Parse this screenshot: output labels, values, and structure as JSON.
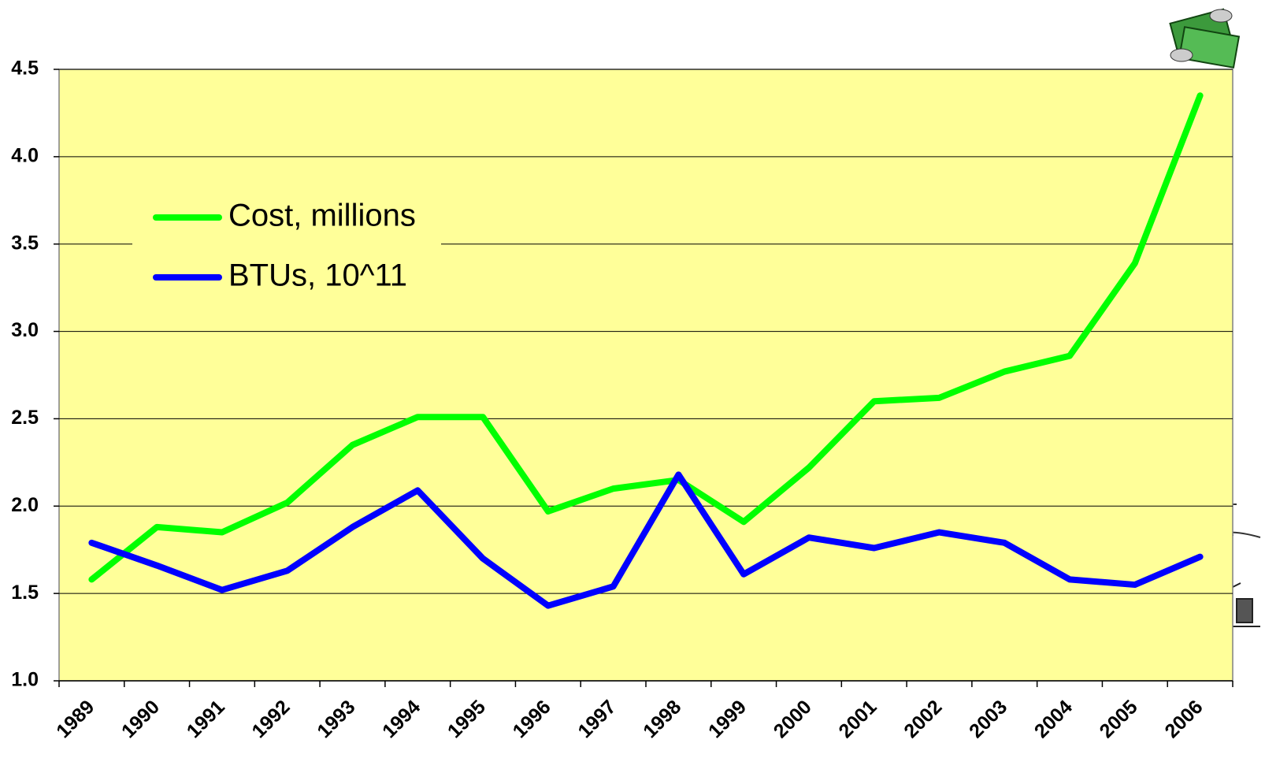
{
  "chart_data": {
    "type": "line",
    "categories": [
      "1989",
      "1990",
      "1991",
      "1992",
      "1993",
      "1994",
      "1995",
      "1996",
      "1997",
      "1998",
      "1999",
      "2000",
      "2001",
      "2002",
      "2003",
      "2004",
      "2005",
      "2006"
    ],
    "series": [
      {
        "name": "Cost, millions",
        "color": "#00ff00",
        "values": [
          1.58,
          1.88,
          1.85,
          2.02,
          2.35,
          2.51,
          2.51,
          1.97,
          2.1,
          2.15,
          1.91,
          2.22,
          2.6,
          2.62,
          2.77,
          2.86,
          3.39,
          4.35
        ]
      },
      {
        "name": "BTUs, 10^11",
        "color": "#0000ff",
        "values": [
          1.79,
          1.66,
          1.52,
          1.63,
          1.88,
          2.09,
          1.7,
          1.43,
          1.54,
          2.18,
          1.61,
          1.82,
          1.76,
          1.85,
          1.79,
          1.58,
          1.55,
          1.71
        ]
      }
    ],
    "ylim": [
      1.0,
      4.5
    ],
    "yticks": [
      {
        "value": 1,
        "label": "1.0"
      },
      1.5,
      {
        "value": 2,
        "label": "2.0"
      },
      2.5,
      {
        "value": 3,
        "label": "3.0"
      },
      3.5,
      {
        "value": 4,
        "label": "4.0"
      },
      4.5
    ],
    "grid": true,
    "plot_background": "#ffff99"
  }
}
